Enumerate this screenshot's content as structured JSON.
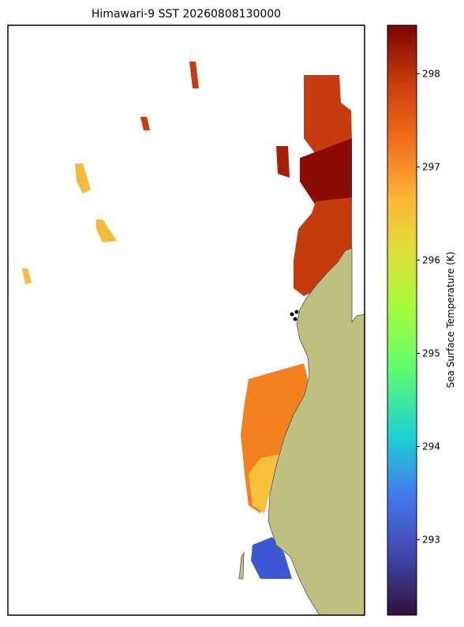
{
  "title": "Himawari-9 SST 20260808130000",
  "colorbar": {
    "label": "Sea Surface Temperature (K)",
    "lim": [
      292.19,
      298.52
    ],
    "ticks": [
      293,
      294,
      295,
      296,
      297,
      298
    ]
  }
}
